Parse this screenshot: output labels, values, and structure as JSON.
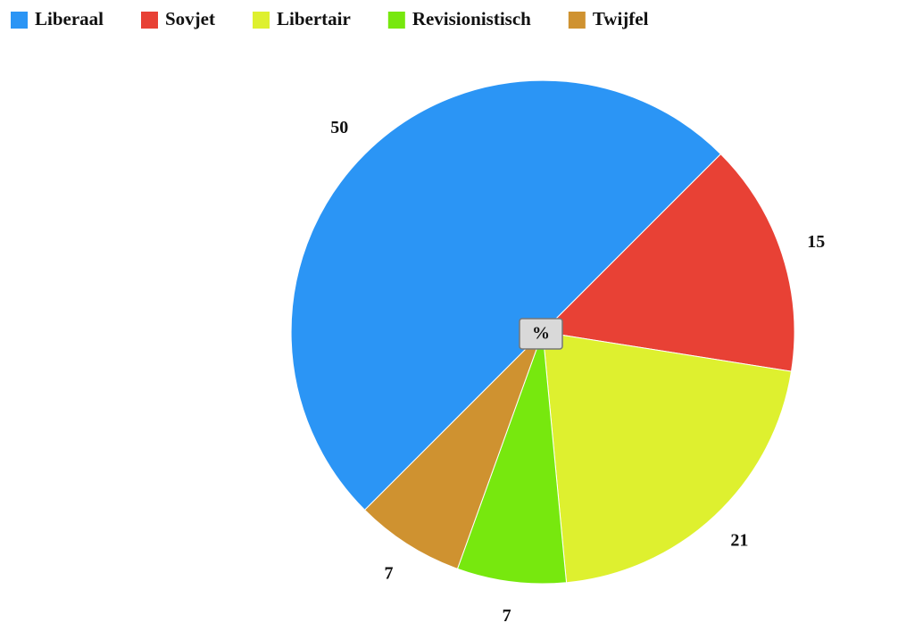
{
  "chart_data": {
    "type": "pie",
    "categories": [
      "Liberaal",
      "Sovjet",
      "Libertair",
      "Revisionistisch",
      "Twijfel"
    ],
    "values": [
      50,
      15,
      21,
      7,
      7
    ],
    "colors": [
      "#2b95f5",
      "#e84135",
      "#def02f",
      "#77e80e",
      "#cf9230"
    ],
    "center_label": "%"
  }
}
